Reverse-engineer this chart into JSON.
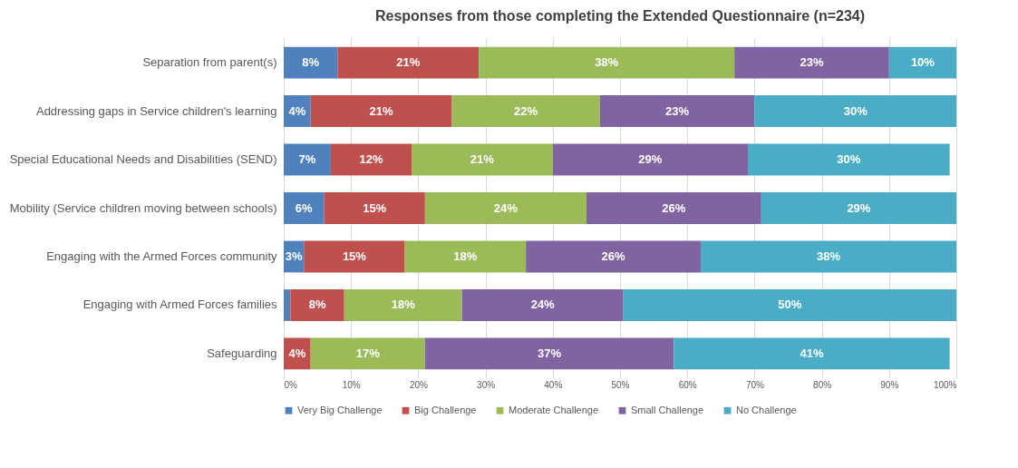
{
  "chart_data": {
    "type": "bar",
    "orientation": "horizontal",
    "stacked": true,
    "title": "Responses from those completing the Extended Questionnaire (n=234)",
    "categories": [
      "Separation from parent(s)",
      "Addressing gaps in Service children's learning",
      "Special Educational Needs and Disabilities (SEND)",
      "Mobility (Service children moving between schools)",
      "Engaging with the Armed Forces community",
      "Engaging with Armed Forces families",
      "Safeguarding"
    ],
    "series": [
      {
        "name": "Very Big Challenge",
        "color": "#4f81bd",
        "values": [
          8,
          4,
          7,
          6,
          3,
          1,
          null
        ],
        "value_labels": [
          "8%",
          "4%",
          "7%",
          "6%",
          "3%",
          null,
          null
        ]
      },
      {
        "name": "Big Challenge",
        "color": "#c0504d",
        "values": [
          21,
          21,
          12,
          15,
          15,
          8,
          4
        ],
        "value_labels": [
          "21%",
          "21%",
          "12%",
          "15%",
          "15%",
          "8%",
          "4%"
        ]
      },
      {
        "name": "Moderate Challenge",
        "color": "#9bbb59",
        "values": [
          38,
          22,
          21,
          24,
          18,
          17.5,
          17
        ],
        "value_labels": [
          "38%",
          "22%",
          "21%",
          "24%",
          "18%",
          "18%",
          "17%"
        ]
      },
      {
        "name": "Small Challenge",
        "color": "#8064a2",
        "values": [
          23,
          23,
          29,
          26,
          26,
          24,
          37
        ],
        "value_labels": [
          "23%",
          "23%",
          "29%",
          "26%",
          "26%",
          "24%",
          "37%"
        ]
      },
      {
        "name": "No Challenge",
        "color": "#4bacc6",
        "values": [
          10,
          30,
          30,
          29,
          38,
          49.5,
          41
        ],
        "value_labels": [
          "10%",
          "30%",
          "30%",
          "29%",
          "38%",
          "50%",
          "41%"
        ]
      }
    ],
    "xlim": [
      0,
      100
    ],
    "xticks": [
      {
        "value": 0,
        "label": "0%"
      },
      {
        "value": 10,
        "label": "10%"
      },
      {
        "value": 20,
        "label": "20%"
      },
      {
        "value": 30,
        "label": "30%"
      },
      {
        "value": 40,
        "label": "40%"
      },
      {
        "value": 50,
        "label": "50%"
      },
      {
        "value": 60,
        "label": "60%"
      },
      {
        "value": 70,
        "label": "70%"
      },
      {
        "value": 80,
        "label": "80%"
      },
      {
        "value": 90,
        "label": "90%"
      },
      {
        "value": 100,
        "label": "100%"
      }
    ],
    "grid": "x",
    "legend": "bottom"
  }
}
